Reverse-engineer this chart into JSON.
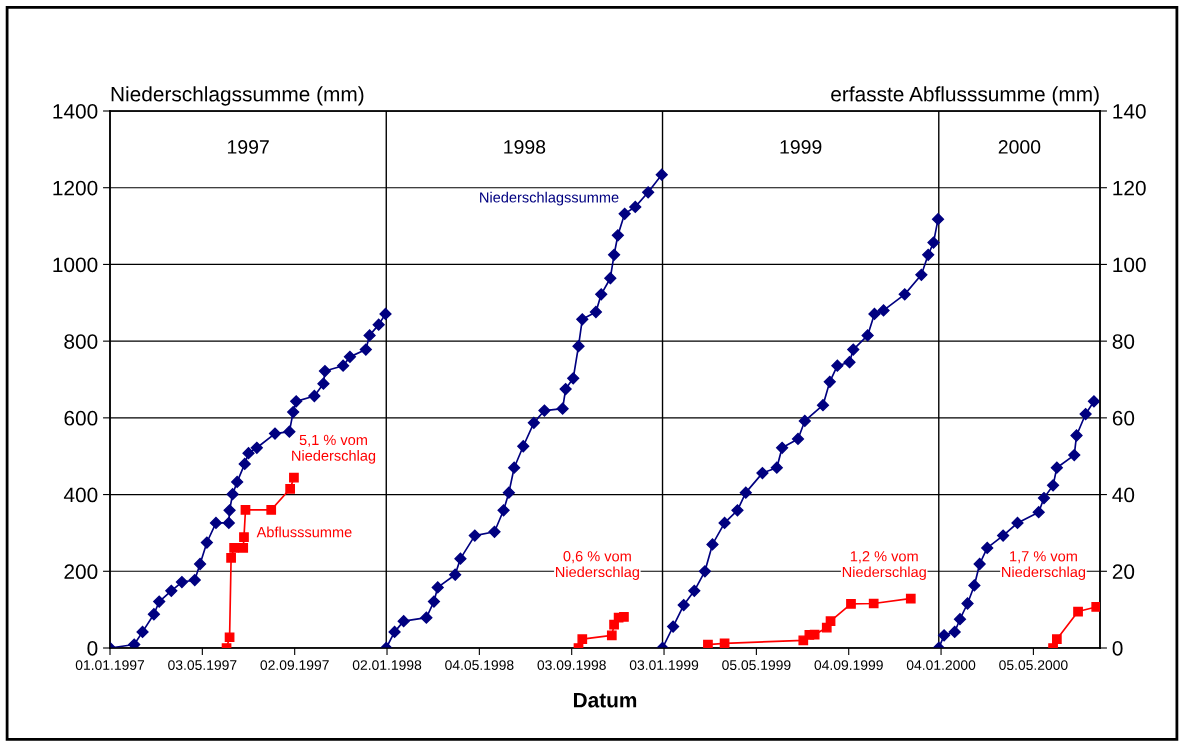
{
  "chart_data": {
    "type": "line",
    "ylabel": "Niederschlagssumme (mm)",
    "y2label": "erfasste Abflusssumme (mm)",
    "xlabel": "Datum",
    "xlim": [
      "1997-01-01",
      "2000-08-01"
    ],
    "xticks": [
      {
        "value": "1997-01-01",
        "label": "01.01.1997"
      },
      {
        "value": "1997-05-03",
        "label": "03.05.1997"
      },
      {
        "value": "1997-09-02",
        "label": "02.09.1997"
      },
      {
        "value": "1998-01-02",
        "label": "02.01.1998"
      },
      {
        "value": "1998-05-04",
        "label": "04.05.1998"
      },
      {
        "value": "1998-09-03",
        "label": "03.09.1998"
      },
      {
        "value": "1999-01-03",
        "label": "03.01.1999"
      },
      {
        "value": "1999-05-05",
        "label": "05.05.1999"
      },
      {
        "value": "1999-09-04",
        "label": "04.09.1999"
      },
      {
        "value": "2000-01-04",
        "label": "04.01.2000"
      },
      {
        "value": "2000-05-05",
        "label": "05.05.2000"
      }
    ],
    "ylim": [
      0,
      1400
    ],
    "yticks": [
      0,
      200,
      400,
      600,
      800,
      1000,
      1200,
      1400
    ],
    "y2lim": [
      0,
      140
    ],
    "y2ticks": [
      0,
      20,
      40,
      60,
      80,
      100,
      120,
      140
    ],
    "grid": "y",
    "line_style": "solid",
    "ref_lines": [
      {
        "axis": "x",
        "value": "1998-01-01",
        "label": null,
        "color": "#000000"
      },
      {
        "axis": "x",
        "value": "1999-01-01",
        "label": null,
        "color": "#000000"
      },
      {
        "axis": "x",
        "value": "2000-01-01",
        "label": null,
        "color": "#000000"
      }
    ],
    "annotations": [
      "1997",
      "1998",
      "1999",
      "2000",
      "5,1 % vom\nNiederschlag",
      "0,6 % vom\nNiederschlag",
      "1,2 % vom\nNiederschlag",
      "1,7 % vom\nNiederschlag"
    ],
    "series": [
      {
        "color": "#000080",
        "marker": "diamond",
        "x": [
          "1997-01-01",
          "1997-02-02",
          "1997-02-13",
          "1997-02-28",
          "1997-03-07",
          "1997-03-23",
          "1997-04-06",
          "1997-04-23",
          "1997-04-30",
          "1997-05-09",
          "1997-05-21",
          "1997-06-07",
          "1997-06-08",
          "1997-06-12",
          "1997-06-18",
          "1997-06-28",
          "1997-07-03",
          "1997-07-14",
          "1997-08-07",
          "1997-08-26",
          "1997-08-31",
          "1997-09-04",
          "1997-09-28",
          "1997-10-10",
          "1997-10-12",
          "1997-11-05",
          "1997-11-14",
          "1997-12-05",
          "1997-12-10",
          "1997-12-22",
          "1997-12-31"
        ],
        "values": [
          0,
          9,
          42,
          88,
          121,
          149,
          172,
          177,
          219,
          275,
          326,
          326,
          359,
          401,
          433,
          480,
          508,
          522,
          559,
          564,
          615,
          643,
          657,
          689,
          722,
          736,
          759,
          778,
          815,
          843,
          871
        ]
      },
      {
        "name": "Niederschlagssumme",
        "color": "#000080",
        "marker": "diamond",
        "x": [
          "1998-01-01",
          "1998-01-12",
          "1998-01-24",
          "1998-02-23",
          "1998-03-05",
          "1998-03-10",
          "1998-04-02",
          "1998-04-09",
          "1998-04-28",
          "1998-05-24",
          "1998-06-05",
          "1998-06-12",
          "1998-06-19",
          "1998-07-01",
          "1998-07-15",
          "1998-07-29",
          "1998-08-22",
          "1998-08-26",
          "1998-09-05",
          "1998-09-12",
          "1998-09-17",
          "1998-10-05",
          "1998-10-12",
          "1998-10-24",
          "1998-10-29",
          "1998-11-03",
          "1998-11-12",
          "1998-11-26",
          "1998-12-13",
          "1998-12-31"
        ],
        "values": [
          0,
          42,
          70,
          79,
          121,
          158,
          191,
          233,
          293,
          303,
          359,
          405,
          470,
          526,
          587,
          619,
          624,
          675,
          703,
          787,
          857,
          876,
          922,
          964,
          1025,
          1076,
          1132,
          1150,
          1188,
          1234
        ]
      },
      {
        "color": "#000080",
        "marker": "diamond",
        "x": [
          "1999-01-01",
          "1999-01-15",
          "1999-01-29",
          "1999-02-12",
          "1999-02-26",
          "1999-03-08",
          "1999-03-24",
          "1999-04-10",
          "1999-04-21",
          "1999-05-13",
          "1999-06-01",
          "1999-06-08",
          "1999-06-29",
          "1999-07-08",
          "1999-08-01",
          "1999-08-10",
          "1999-08-20",
          "1999-09-05",
          "1999-09-10",
          "1999-09-29",
          "1999-10-08",
          "1999-10-20",
          "1999-11-17",
          "1999-12-09",
          "1999-12-18",
          "1999-12-25",
          "1999-12-31"
        ],
        "values": [
          0,
          56,
          112,
          149,
          200,
          270,
          326,
          359,
          405,
          456,
          470,
          522,
          545,
          592,
          633,
          694,
          736,
          745,
          778,
          815,
          871,
          880,
          922,
          973,
          1025,
          1057,
          1118
        ]
      },
      {
        "color": "#000080",
        "marker": "diamond",
        "x": [
          "2000-01-01",
          "2000-01-08",
          "2000-01-22",
          "2000-01-29",
          "2000-02-08",
          "2000-02-17",
          "2000-02-24",
          "2000-03-05",
          "2000-03-26",
          "2000-04-14",
          "2000-05-12",
          "2000-05-19",
          "2000-05-31",
          "2000-06-05",
          "2000-06-28",
          "2000-07-01",
          "2000-07-13",
          "2000-07-24"
        ],
        "values": [
          0,
          33,
          42,
          75,
          116,
          163,
          219,
          261,
          293,
          326,
          354,
          391,
          424,
          470,
          503,
          554,
          610,
          643
        ]
      },
      {
        "name": "Abflusssumme",
        "color": "#ff0000",
        "marker": "square",
        "axis": "y2",
        "x": [
          "1997-06-04",
          "1997-06-08",
          "1997-06-10",
          "1997-06-14",
          "1997-06-26",
          "1997-06-27",
          "1997-06-29",
          "1997-08-02",
          "1997-08-27",
          "1997-09-01"
        ],
        "values": [
          0,
          2.8,
          23.5,
          26.1,
          26.1,
          28.9,
          36.0,
          36.0,
          41.5,
          44.4
        ]
      },
      {
        "color": "#ff0000",
        "marker": "square",
        "axis": "y2",
        "x": [
          "1998-09-12",
          "1998-09-17",
          "1998-10-26",
          "1998-10-29",
          "1998-11-04",
          "1998-11-11"
        ],
        "values": [
          0,
          2.3,
          3.3,
          6.1,
          7.9,
          8.1
        ]
      },
      {
        "color": "#ff0000",
        "marker": "square",
        "axis": "y2",
        "x": [
          "1999-03-02",
          "1999-03-24",
          "1999-07-06",
          "1999-07-14",
          "1999-07-21",
          "1999-08-06",
          "1999-08-11",
          "1999-09-07",
          "1999-10-07",
          "1999-11-25"
        ],
        "values": [
          0.9,
          1.2,
          2.0,
          3.4,
          3.5,
          5.3,
          7.0,
          11.5,
          11.6,
          12.9
        ]
      },
      {
        "color": "#ff0000",
        "marker": "square",
        "axis": "y2",
        "x": [
          "2000-05-31",
          "2000-06-05",
          "2000-07-03",
          "2000-07-27"
        ],
        "values": [
          0,
          2.3,
          9.5,
          10.7
        ]
      }
    ]
  }
}
